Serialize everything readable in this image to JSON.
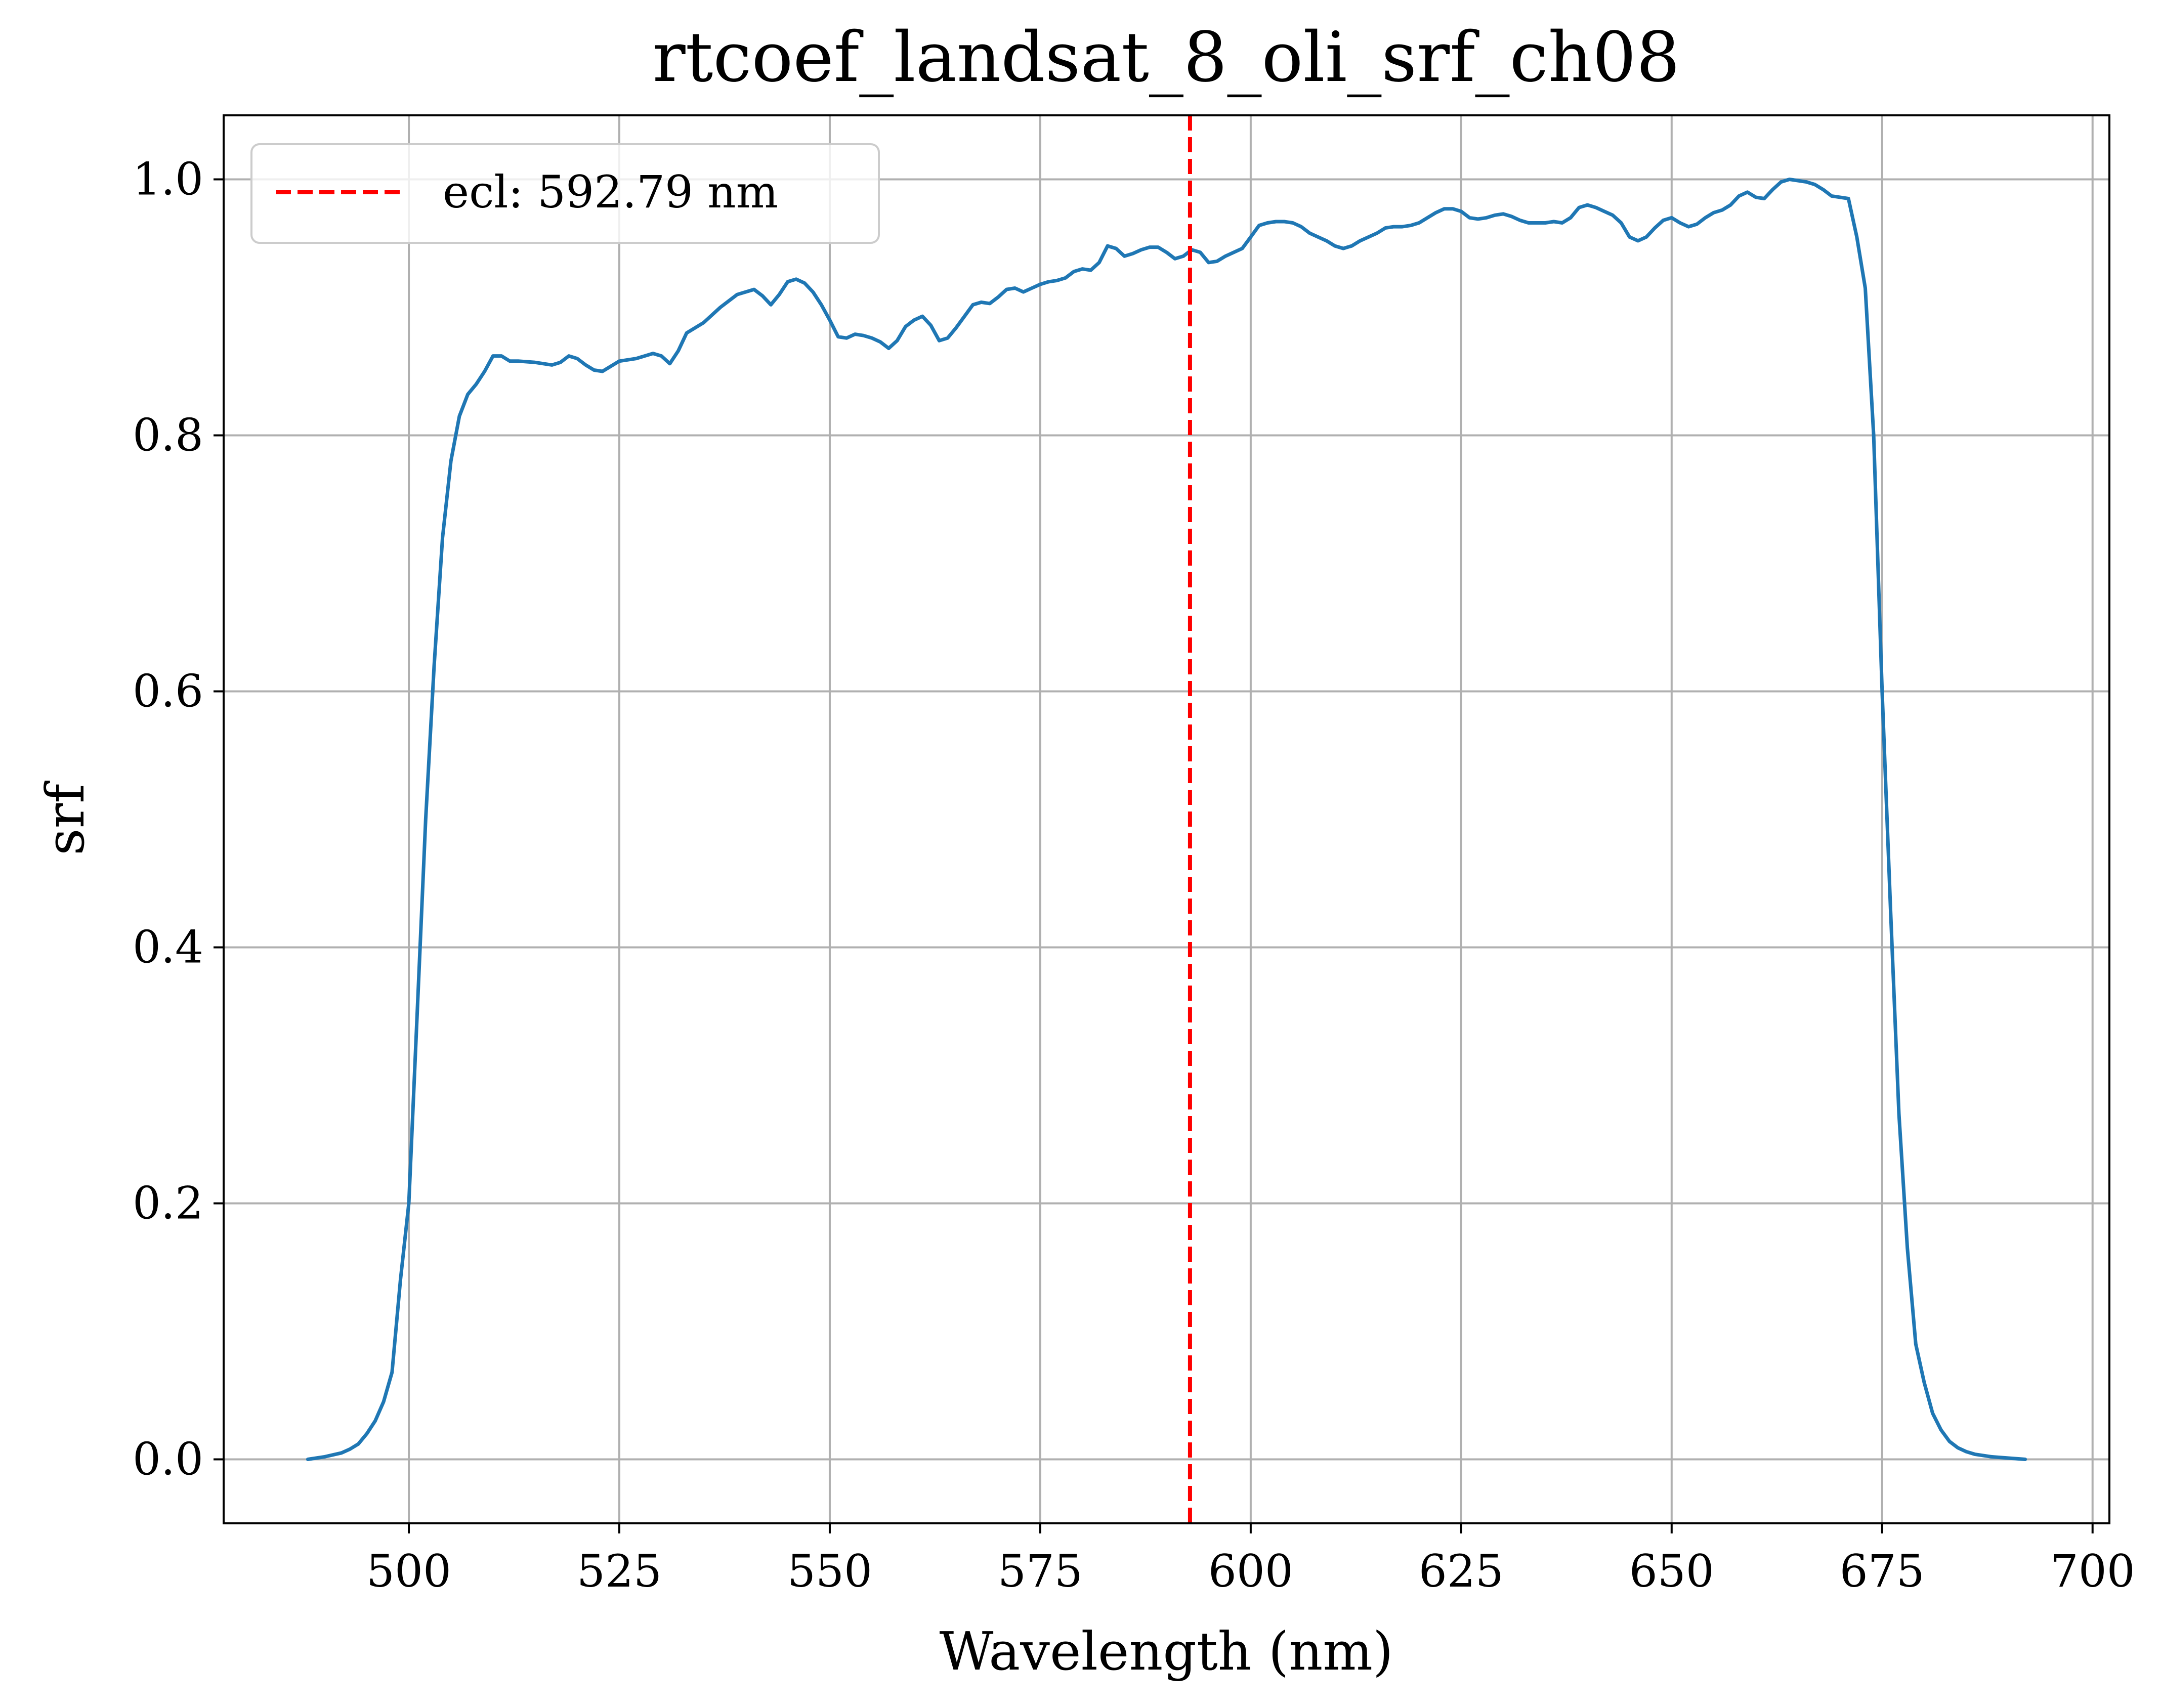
{
  "chart_data": {
    "type": "line",
    "title": "rtcoef_landsat_8_oli_srf_ch08",
    "xlabel": "Wavelength (nm)",
    "ylabel": "srf",
    "xlim": [
      478,
      702
    ],
    "ylim": [
      -0.05,
      1.05
    ],
    "xticks": [
      500,
      525,
      550,
      575,
      600,
      625,
      650,
      675,
      700
    ],
    "yticks": [
      0.0,
      0.2,
      0.4,
      0.6,
      0.8,
      1.0
    ],
    "xtick_labels": [
      "500",
      "525",
      "550",
      "575",
      "600",
      "625",
      "650",
      "675",
      "700"
    ],
    "ytick_labels": [
      "0.0",
      "0.2",
      "0.4",
      "0.6",
      "0.8",
      "1.0"
    ],
    "grid": true,
    "legend_position": "top-left",
    "series": [
      {
        "color": "#1f77b4",
        "x": [
          488,
          490,
          492,
          493,
          494,
          495,
          496,
          497,
          498,
          499,
          500,
          501,
          502,
          503,
          504,
          505,
          506,
          507,
          508,
          509,
          510,
          511,
          512,
          513,
          515,
          517,
          518,
          519,
          520,
          521,
          522,
          523,
          525,
          527,
          529,
          530,
          531,
          532,
          533,
          535,
          537,
          539,
          541,
          542,
          543,
          544,
          545,
          546,
          547,
          548,
          549,
          550,
          551,
          552,
          553,
          554,
          555,
          556,
          557,
          558,
          559,
          560,
          561,
          562,
          563,
          564,
          565,
          566,
          567,
          568,
          569,
          570,
          571,
          572,
          573,
          574,
          575,
          576,
          577,
          578,
          579,
          580,
          581,
          582,
          583,
          584,
          585,
          586,
          587,
          588,
          589,
          590,
          591,
          592,
          593,
          594,
          595,
          596,
          597,
          598,
          599,
          600,
          601,
          602,
          603,
          604,
          605,
          606,
          607,
          608,
          609,
          610,
          611,
          612,
          613,
          614,
          615,
          616,
          617,
          618,
          619,
          620,
          621,
          622,
          623,
          624,
          625,
          626,
          627,
          628,
          629,
          630,
          631,
          632,
          633,
          634,
          635,
          636,
          637,
          638,
          639,
          640,
          641,
          642,
          643,
          644,
          645,
          646,
          647,
          648,
          649,
          650,
          651,
          652,
          653,
          654,
          655,
          656,
          657,
          658,
          659,
          660,
          661,
          662,
          663,
          664,
          665,
          666,
          667,
          668,
          669,
          670,
          671,
          672,
          673,
          674,
          675,
          676,
          677,
          678,
          679,
          680,
          681,
          682,
          683,
          684,
          685,
          686,
          688,
          690,
          692
        ],
        "y": [
          0.0,
          0.002,
          0.005,
          0.008,
          0.012,
          0.02,
          0.03,
          0.045,
          0.068,
          0.14,
          0.2,
          0.35,
          0.5,
          0.62,
          0.72,
          0.78,
          0.815,
          0.832,
          0.84,
          0.85,
          0.862,
          0.862,
          0.858,
          0.858,
          0.857,
          0.855,
          0.857,
          0.862,
          0.86,
          0.855,
          0.851,
          0.85,
          0.858,
          0.86,
          0.864,
          0.862,
          0.856,
          0.866,
          0.88,
          0.888,
          0.9,
          0.91,
          0.914,
          0.909,
          0.902,
          0.91,
          0.92,
          0.922,
          0.919,
          0.912,
          0.902,
          0.89,
          0.877,
          0.876,
          0.879,
          0.878,
          0.876,
          0.873,
          0.868,
          0.874,
          0.885,
          0.89,
          0.893,
          0.886,
          0.874,
          0.876,
          0.884,
          0.893,
          0.902,
          0.904,
          0.903,
          0.908,
          0.914,
          0.915,
          0.912,
          0.915,
          0.918,
          0.92,
          0.921,
          0.923,
          0.928,
          0.93,
          0.929,
          0.935,
          0.948,
          0.946,
          0.94,
          0.942,
          0.945,
          0.947,
          0.947,
          0.943,
          0.938,
          0.94,
          0.945,
          0.943,
          0.935,
          0.936,
          0.94,
          0.943,
          0.946,
          0.955,
          0.964,
          0.966,
          0.967,
          0.967,
          0.966,
          0.963,
          0.958,
          0.955,
          0.952,
          0.948,
          0.946,
          0.948,
          0.952,
          0.955,
          0.958,
          0.962,
          0.963,
          0.963,
          0.964,
          0.966,
          0.97,
          0.974,
          0.977,
          0.977,
          0.975,
          0.97,
          0.969,
          0.97,
          0.972,
          0.973,
          0.971,
          0.968,
          0.966,
          0.966,
          0.966,
          0.967,
          0.966,
          0.97,
          0.978,
          0.98,
          0.978,
          0.975,
          0.972,
          0.966,
          0.955,
          0.952,
          0.955,
          0.962,
          0.968,
          0.97,
          0.966,
          0.963,
          0.965,
          0.97,
          0.974,
          0.976,
          0.98,
          0.987,
          0.99,
          0.986,
          0.985,
          0.992,
          0.998,
          1.0,
          0.999,
          0.998,
          0.996,
          0.992,
          0.987,
          0.986,
          0.985,
          0.955,
          0.915,
          0.8,
          0.6,
          0.43,
          0.27,
          0.165,
          0.09,
          0.06,
          0.036,
          0.023,
          0.014,
          0.009,
          0.006,
          0.004,
          0.002,
          0.001,
          0.0
        ]
      }
    ],
    "reference_line": {
      "x": 592.79,
      "color": "#ff0000",
      "style": "dashed",
      "legend_label": "ecl: 592.79 nm"
    }
  },
  "colors": {
    "grid": "#b0b0b0",
    "series": "#1f77b4",
    "reference": "#ff0000"
  }
}
